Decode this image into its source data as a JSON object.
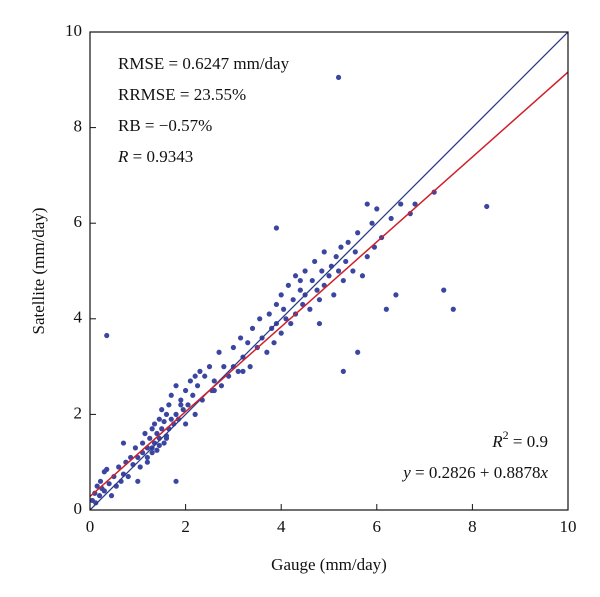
{
  "chart_data": {
    "type": "scatter",
    "x_label": "Gauge (mm/day)",
    "y_label": "Satellite (mm/day)",
    "xlim": [
      0,
      10
    ],
    "ylim": [
      0,
      10
    ],
    "xticks": [
      0,
      2,
      4,
      6,
      8,
      10
    ],
    "yticks": [
      0,
      2,
      4,
      6,
      8,
      10
    ],
    "point_color": "#3a46a0",
    "reference_line": {
      "x": [
        0,
        10
      ],
      "values": [
        0,
        10
      ],
      "color": "#2b3a8c"
    },
    "fit_line": {
      "intercept": 0.2826,
      "slope": 0.8878,
      "color": "#d0202a"
    },
    "annotations_top_left": [
      [
        {
          "text": "RMSE = 0.6247 mm/day"
        }
      ],
      [
        {
          "text": "RRMSE = 23.55%"
        }
      ],
      [
        {
          "text": "RB = −0.57%"
        }
      ],
      [
        {
          "text": "R",
          "style": "italic"
        },
        {
          "text": " = 0.9343"
        }
      ]
    ],
    "annotations_bottom_right": [
      [
        {
          "text": "R",
          "style": "italic"
        },
        {
          "text": "2",
          "style": "sup"
        },
        {
          "text": " = 0.9"
        }
      ],
      [
        {
          "text": "y",
          "style": "italic"
        },
        {
          "text": " = 0.2826 + 0.8878"
        },
        {
          "text": "x",
          "style": "italic"
        }
      ]
    ],
    "x": [
      0.05,
      0.1,
      0.12,
      0.15,
      0.2,
      0.22,
      0.25,
      0.3,
      0.35,
      0.4,
      0.45,
      0.5,
      0.55,
      0.6,
      0.65,
      0.7,
      0.75,
      0.8,
      0.85,
      0.9,
      0.95,
      1.0,
      1.05,
      1.1,
      1.1,
      1.15,
      1.2,
      1.2,
      1.25,
      1.3,
      1.3,
      1.35,
      1.35,
      1.4,
      1.4,
      1.45,
      1.45,
      1.5,
      1.5,
      1.55,
      1.55,
      1.6,
      1.6,
      1.65,
      1.65,
      1.7,
      1.7,
      1.75,
      1.8,
      1.8,
      1.85,
      1.9,
      1.95,
      2.0,
      2.0,
      2.05,
      2.1,
      2.15,
      2.2,
      2.25,
      2.3,
      2.35,
      2.4,
      2.5,
      2.55,
      2.6,
      2.7,
      2.75,
      2.8,
      2.9,
      3.0,
      3.0,
      3.1,
      3.15,
      3.2,
      3.3,
      3.35,
      3.4,
      3.5,
      3.55,
      3.6,
      3.7,
      3.75,
      3.8,
      3.85,
      3.9,
      3.9,
      4.0,
      4.0,
      4.05,
      4.1,
      4.15,
      4.2,
      4.25,
      4.3,
      4.3,
      4.4,
      4.45,
      4.5,
      4.5,
      4.6,
      4.65,
      4.7,
      4.75,
      4.8,
      4.85,
      4.9,
      4.9,
      5.0,
      5.05,
      5.1,
      5.15,
      5.2,
      5.25,
      5.3,
      5.35,
      5.4,
      5.5,
      5.55,
      5.6,
      5.7,
      5.8,
      5.9,
      5.95,
      6.0,
      6.1,
      6.2,
      6.3,
      6.5,
      6.7,
      6.8,
      7.2,
      7.4,
      7.6,
      8.3,
      5.2,
      0.35,
      1.8,
      3.9,
      5.3,
      5.6,
      2.2,
      0.3,
      1.0,
      1.3,
      1.6,
      1.2,
      1.45,
      2.6,
      3.2,
      4.4,
      4.8,
      5.8,
      6.4,
      0.7,
      1.9
    ],
    "values": [
      0.2,
      0.35,
      0.15,
      0.5,
      0.3,
      0.6,
      0.45,
      0.4,
      0.85,
      0.55,
      0.3,
      0.7,
      0.5,
      0.9,
      0.6,
      0.75,
      1.0,
      0.7,
      1.1,
      0.95,
      1.3,
      1.1,
      0.9,
      1.4,
      1.2,
      1.6,
      1.3,
      1.0,
      1.5,
      1.7,
      1.2,
      1.8,
      1.4,
      1.6,
      1.25,
      1.9,
      1.5,
      1.7,
      2.1,
      1.4,
      1.85,
      2.0,
      1.55,
      2.2,
      1.7,
      1.9,
      2.4,
      1.8,
      2.0,
      2.6,
      1.9,
      2.3,
      2.1,
      2.5,
      1.8,
      2.2,
      2.7,
      2.4,
      2.0,
      2.6,
      2.9,
      2.3,
      2.8,
      3.0,
      2.5,
      2.7,
      3.3,
      2.6,
      3.0,
      2.8,
      3.4,
      3.0,
      2.9,
      3.6,
      3.2,
      3.5,
      3.0,
      3.8,
      3.4,
      4.0,
      3.6,
      3.3,
      4.1,
      3.8,
      3.5,
      4.3,
      3.9,
      4.5,
      3.7,
      4.2,
      4.0,
      4.7,
      3.9,
      4.4,
      4.9,
      4.1,
      4.6,
      4.3,
      5.0,
      4.5,
      4.2,
      4.8,
      5.2,
      4.6,
      4.4,
      5.0,
      4.7,
      5.4,
      4.9,
      5.1,
      4.5,
      5.3,
      5.0,
      5.5,
      4.8,
      5.2,
      5.6,
      5.0,
      5.4,
      5.8,
      4.9,
      5.3,
      6.0,
      5.5,
      6.3,
      5.7,
      4.2,
      6.1,
      6.4,
      6.2,
      6.4,
      6.65,
      4.6,
      4.2,
      6.35,
      9.05,
      3.65,
      0.6,
      5.9,
      2.9,
      3.3,
      2.8,
      0.8,
      0.6,
      1.3,
      1.5,
      1.1,
      1.35,
      2.5,
      2.9,
      4.8,
      3.9,
      6.4,
      4.5,
      1.4,
      2.2
    ]
  }
}
